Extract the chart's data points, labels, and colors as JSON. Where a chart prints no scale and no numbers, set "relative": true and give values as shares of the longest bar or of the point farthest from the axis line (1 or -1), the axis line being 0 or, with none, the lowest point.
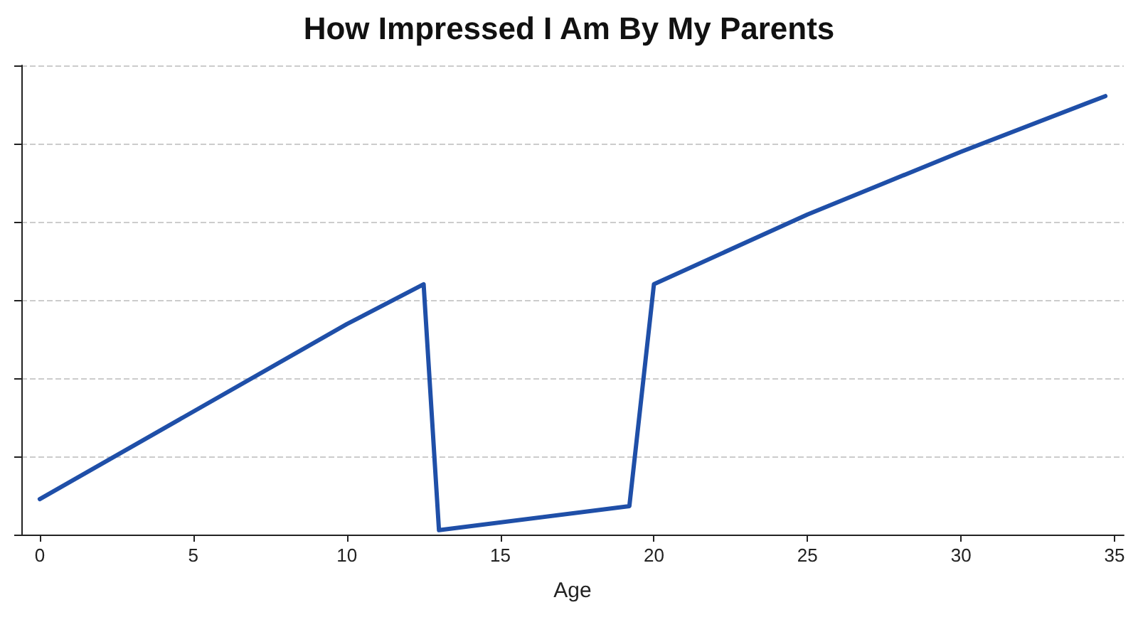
{
  "chart_data": {
    "type": "line",
    "title": "How Impressed I Am By My Parents",
    "xlabel": "Age",
    "relative": true,
    "x": [
      0,
      10,
      12.5,
      13,
      19.2,
      20,
      25,
      30,
      34.7
    ],
    "series": [
      {
        "color": "#1f4fa8",
        "values": [
          0.081,
          0.48,
          0.571,
          0.01,
          0.065,
          0.571,
          0.73,
          0.873,
          1
        ]
      }
    ],
    "xlim": [
      -0.6,
      35.3
    ],
    "xticks": [
      0,
      5,
      10,
      15,
      20,
      25,
      30,
      35
    ],
    "grid": "y",
    "marker": "none",
    "line_style": "solid",
    "tick_labels": "x"
  }
}
